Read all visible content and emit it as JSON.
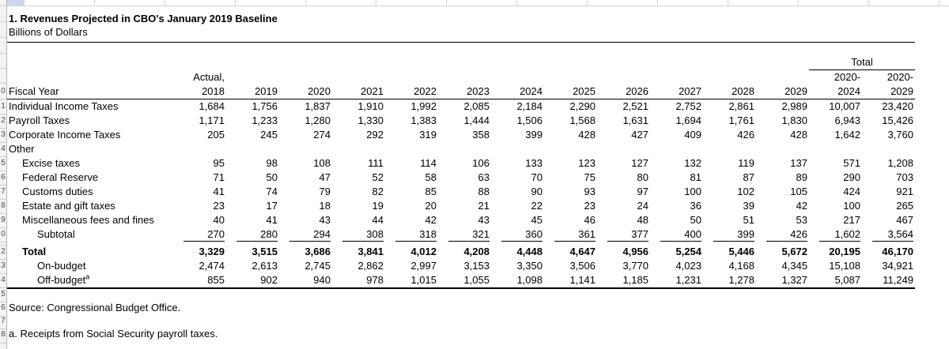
{
  "title": "1. Revenues Projected in CBO's January 2019 Baseline",
  "subtitle": "Billions of Dollars",
  "source_note": "Source: Congressional Budget Office.",
  "footnote": "a. Receipts from Social Security payroll taxes.",
  "colors": {
    "selected_cell_fill": "#ccd7ee"
  },
  "gutter_row_digits": [
    "0",
    "1",
    "2",
    "3",
    "4",
    "5",
    "6",
    "7",
    "8",
    "9",
    "0",
    "2",
    "3",
    "4",
    "5",
    "6",
    "7",
    "8"
  ],
  "header": {
    "fiscal_year_label": "Fiscal Year",
    "actual_label": "Actual,",
    "years": [
      "2018",
      "2019",
      "2020",
      "2021",
      "2022",
      "2023",
      "2024",
      "2025",
      "2026",
      "2027",
      "2028",
      "2029"
    ],
    "total_group_label": "Total",
    "total_columns": [
      {
        "line1": "2020-",
        "line2": "2024"
      },
      {
        "line1": "2020-",
        "line2": "2029"
      }
    ]
  },
  "table": {
    "rows": [
      {
        "label": "Individual Income Taxes",
        "indent": 0,
        "values": [
          "1,684",
          "1,756",
          "1,837",
          "1,910",
          "1,992",
          "2,085",
          "2,184",
          "2,290",
          "2,521",
          "2,752",
          "2,861",
          "2,989",
          "10,007",
          "23,420"
        ]
      },
      {
        "label": "Payroll Taxes",
        "indent": 0,
        "values": [
          "1,171",
          "1,233",
          "1,280",
          "1,330",
          "1,383",
          "1,444",
          "1,506",
          "1,568",
          "1,631",
          "1,694",
          "1,761",
          "1,830",
          "6,943",
          "15,426"
        ]
      },
      {
        "label": "Corporate Income Taxes",
        "indent": 0,
        "values": [
          "205",
          "245",
          "274",
          "292",
          "319",
          "358",
          "399",
          "428",
          "427",
          "409",
          "426",
          "428",
          "1,642",
          "3,760"
        ]
      },
      {
        "label": "Other",
        "indent": 0,
        "values": []
      },
      {
        "label": "Excise taxes",
        "indent": 1,
        "values": [
          "95",
          "98",
          "108",
          "111",
          "114",
          "106",
          "133",
          "123",
          "127",
          "132",
          "119",
          "137",
          "571",
          "1,208"
        ]
      },
      {
        "label": "Federal Reserve",
        "indent": 1,
        "values": [
          "71",
          "50",
          "47",
          "52",
          "58",
          "63",
          "70",
          "75",
          "80",
          "81",
          "87",
          "89",
          "290",
          "703"
        ]
      },
      {
        "label": "Customs duties",
        "indent": 1,
        "values": [
          "41",
          "74",
          "79",
          "82",
          "85",
          "88",
          "90",
          "93",
          "97",
          "100",
          "102",
          "105",
          "424",
          "921"
        ]
      },
      {
        "label": "Estate and gift taxes",
        "indent": 1,
        "values": [
          "23",
          "17",
          "18",
          "19",
          "20",
          "21",
          "22",
          "23",
          "24",
          "36",
          "39",
          "42",
          "100",
          "265"
        ]
      },
      {
        "label": "Miscellaneous fees and fines",
        "indent": 1,
        "values": [
          "40",
          "41",
          "43",
          "44",
          "42",
          "43",
          "45",
          "46",
          "48",
          "50",
          "51",
          "53",
          "217",
          "467"
        ]
      },
      {
        "label": "Subtotal",
        "indent": 2,
        "rule_below": true,
        "values": [
          "270",
          "280",
          "294",
          "308",
          "318",
          "321",
          "360",
          "361",
          "377",
          "400",
          "399",
          "426",
          "1,602",
          "3,564"
        ]
      },
      {
        "type": "spacer"
      },
      {
        "label": "Total",
        "indent": 1,
        "bold": true,
        "values": [
          "3,329",
          "3,515",
          "3,686",
          "3,841",
          "4,012",
          "4,208",
          "4,448",
          "4,647",
          "4,956",
          "5,254",
          "5,446",
          "5,672",
          "20,195",
          "46,170"
        ]
      },
      {
        "label": "On-budget",
        "indent": 2,
        "values": [
          "2,474",
          "2,613",
          "2,745",
          "2,862",
          "2,997",
          "3,153",
          "3,350",
          "3,506",
          "3,770",
          "4,023",
          "4,168",
          "4,345",
          "15,108",
          "34,921"
        ]
      },
      {
        "label": "Off-budget",
        "indent": 2,
        "sup": "a",
        "values": [
          "855",
          "902",
          "940",
          "978",
          "1,015",
          "1,055",
          "1,098",
          "1,141",
          "1,185",
          "1,231",
          "1,278",
          "1,327",
          "5,087",
          "11,249"
        ]
      }
    ]
  }
}
